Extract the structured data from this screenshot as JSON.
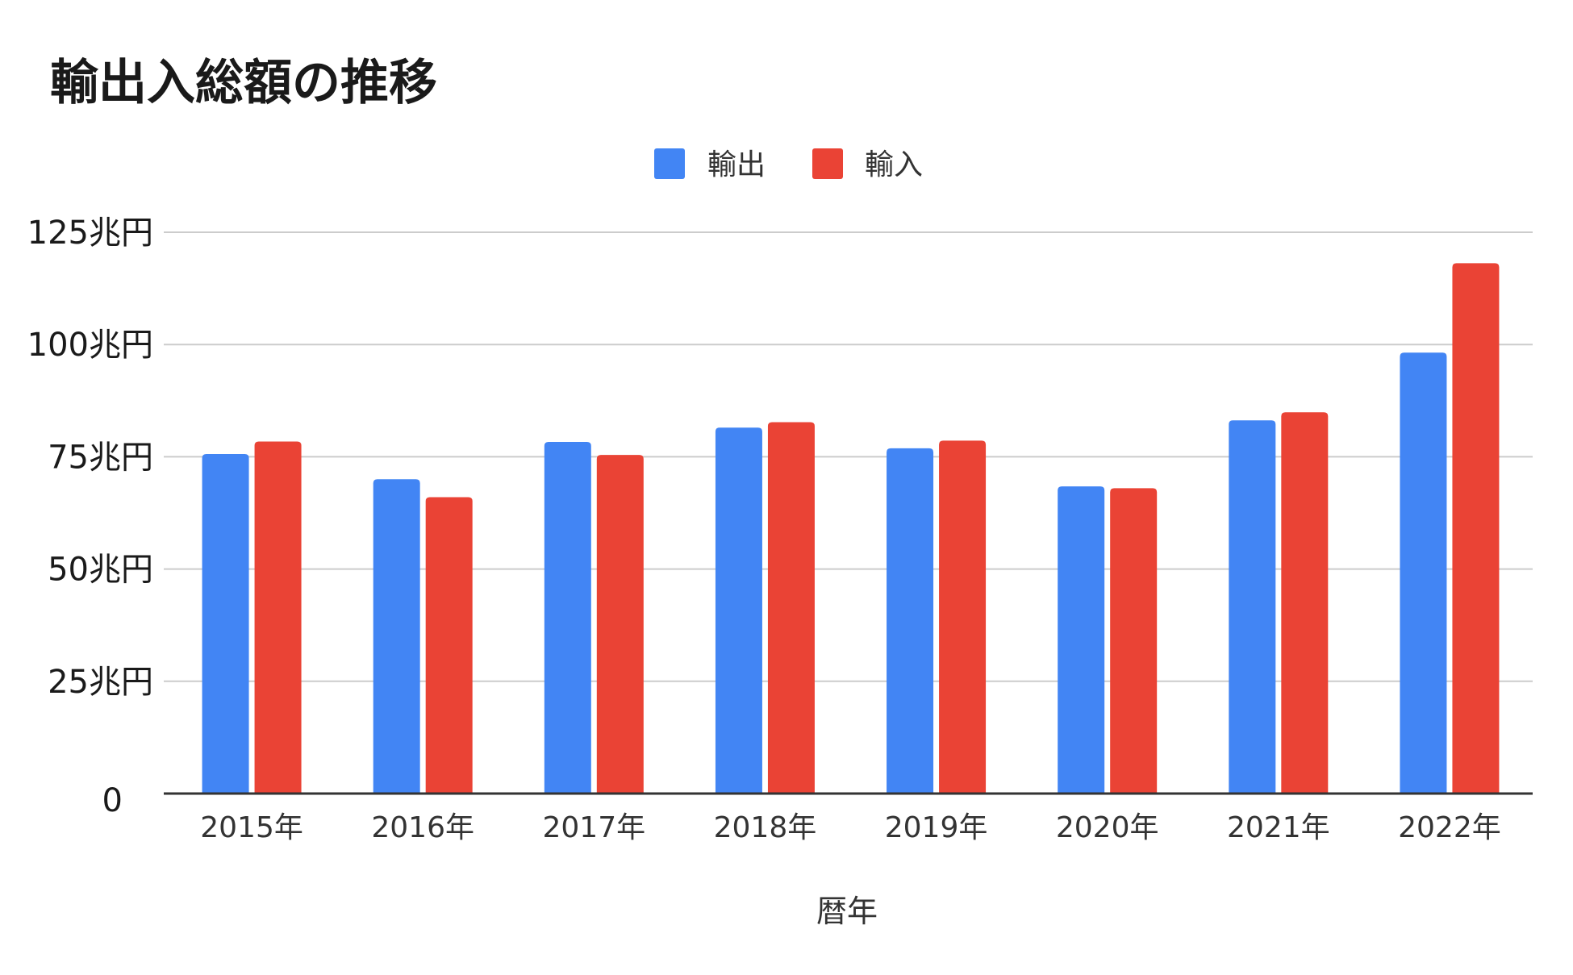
{
  "chart_data": {
    "type": "bar",
    "title": "輸出入総額の推移",
    "xlabel": "暦年",
    "ylabel": "",
    "categories": [
      "2015年",
      "2016年",
      "2017年",
      "2018年",
      "2019年",
      "2020年",
      "2021年",
      "2022年"
    ],
    "series": [
      {
        "name": "輸出",
        "color": "#4285f4",
        "values": [
          75.6,
          70.0,
          78.3,
          81.5,
          76.9,
          68.4,
          83.1,
          98.2
        ]
      },
      {
        "name": "輸入",
        "color": "#ea4335",
        "values": [
          78.4,
          66.0,
          75.4,
          82.7,
          78.6,
          68.0,
          84.9,
          118.1
        ]
      }
    ],
    "ylim": [
      0,
      125
    ],
    "yticks": [
      0,
      25,
      50,
      75,
      100,
      125
    ],
    "ytick_labels": [
      "0",
      "25兆円",
      "50兆円",
      "75兆円",
      "100兆円",
      "125兆円"
    ],
    "grid": true,
    "legend_position": "top-center"
  }
}
